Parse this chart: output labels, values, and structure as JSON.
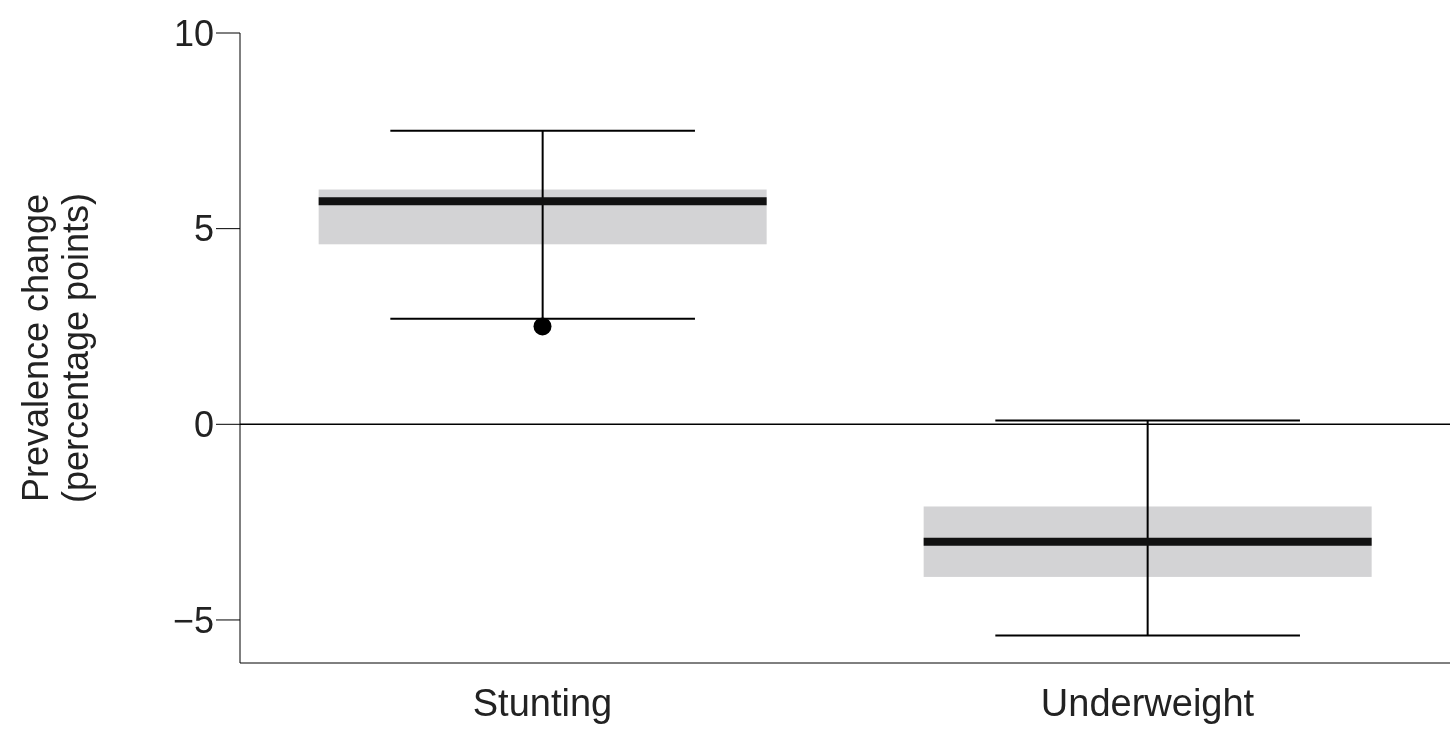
{
  "chart_data": {
    "type": "box",
    "ylabel": "Prevalence change\n(percentage points)",
    "categories": [
      "Stunting",
      "Underweight"
    ],
    "boxes": [
      {
        "low": 2.7,
        "q1": 4.6,
        "median": 5.7,
        "q3": 6.0,
        "high": 7.5,
        "outliers": [
          2.5
        ]
      },
      {
        "low": -5.4,
        "q1": -3.9,
        "median": -3.0,
        "q3": -2.1,
        "high": 0.1
      }
    ],
    "color": "#d3d3d5",
    "ylim": [
      -6.1,
      10
    ],
    "yticks": [
      -5,
      0,
      5,
      10
    ],
    "ref_lines": [
      {
        "axis": "y",
        "value": 0,
        "color": "#000000"
      }
    ],
    "grid": false,
    "legend": false
  }
}
